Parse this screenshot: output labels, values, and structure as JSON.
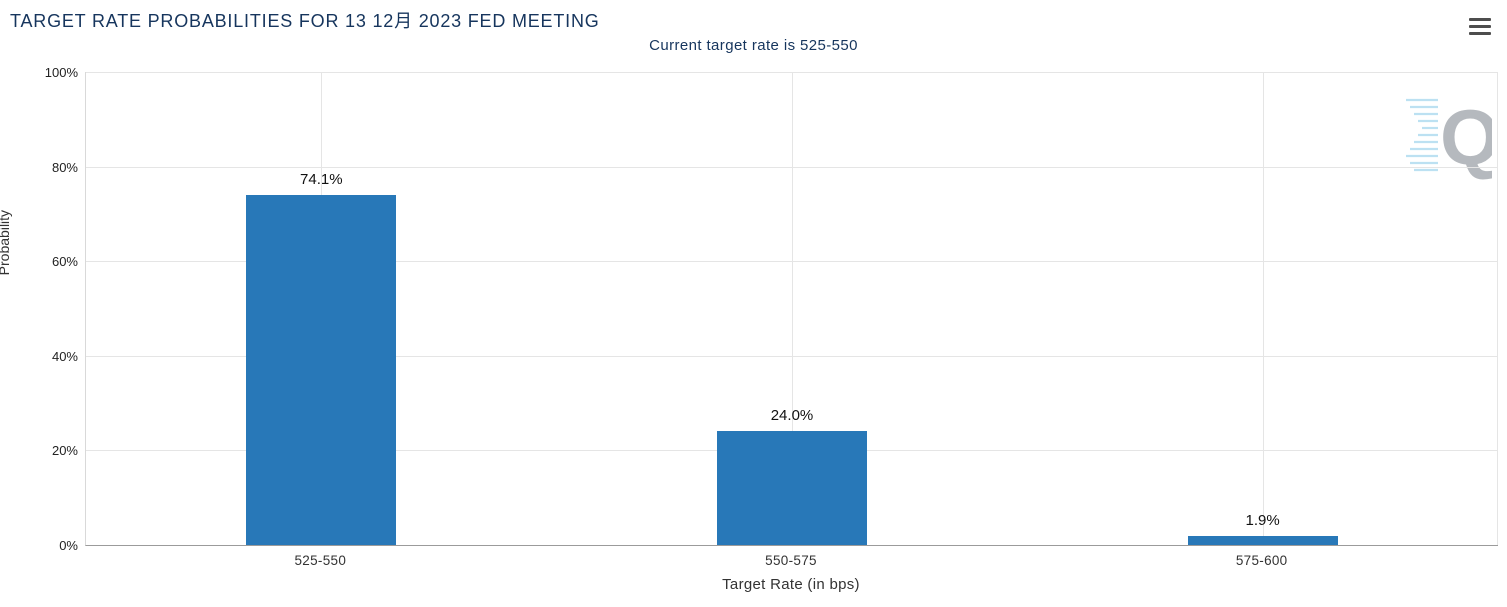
{
  "header": {
    "title": "TARGET RATE PROBABILITIES FOR 13 12月 2023 FED MEETING",
    "subtitle": "Current target rate is 525-550"
  },
  "menu": {
    "icon": "hamburger-icon"
  },
  "watermark": {
    "letter": "Q"
  },
  "colors": {
    "title_text": "#16355d",
    "bar": "#2878b8",
    "grid": "#e5e5e5",
    "axis": "#9b9b9b"
  },
  "chart_data": {
    "type": "bar",
    "title": "TARGET RATE PROBABILITIES FOR 13 12月 2023 FED MEETING",
    "subtitle": "Current target rate is 525-550",
    "categories": [
      "525-550",
      "550-575",
      "575-600"
    ],
    "values": [
      74.1,
      24.0,
      1.9
    ],
    "value_labels": [
      "74.1%",
      "24.0%",
      "1.9%"
    ],
    "xlabel": "Target Rate (in bps)",
    "ylabel": "Probability",
    "ylim": [
      0,
      100
    ],
    "yticks": [
      {
        "value": 0,
        "label": "0%"
      },
      {
        "value": 20,
        "label": "20%"
      },
      {
        "value": 40,
        "label": "40%"
      },
      {
        "value": 60,
        "label": "60%"
      },
      {
        "value": 80,
        "label": "80%"
      },
      {
        "value": 100,
        "label": "100%"
      }
    ],
    "grid": true,
    "legend": "none",
    "bar_color": "#2878b8"
  }
}
